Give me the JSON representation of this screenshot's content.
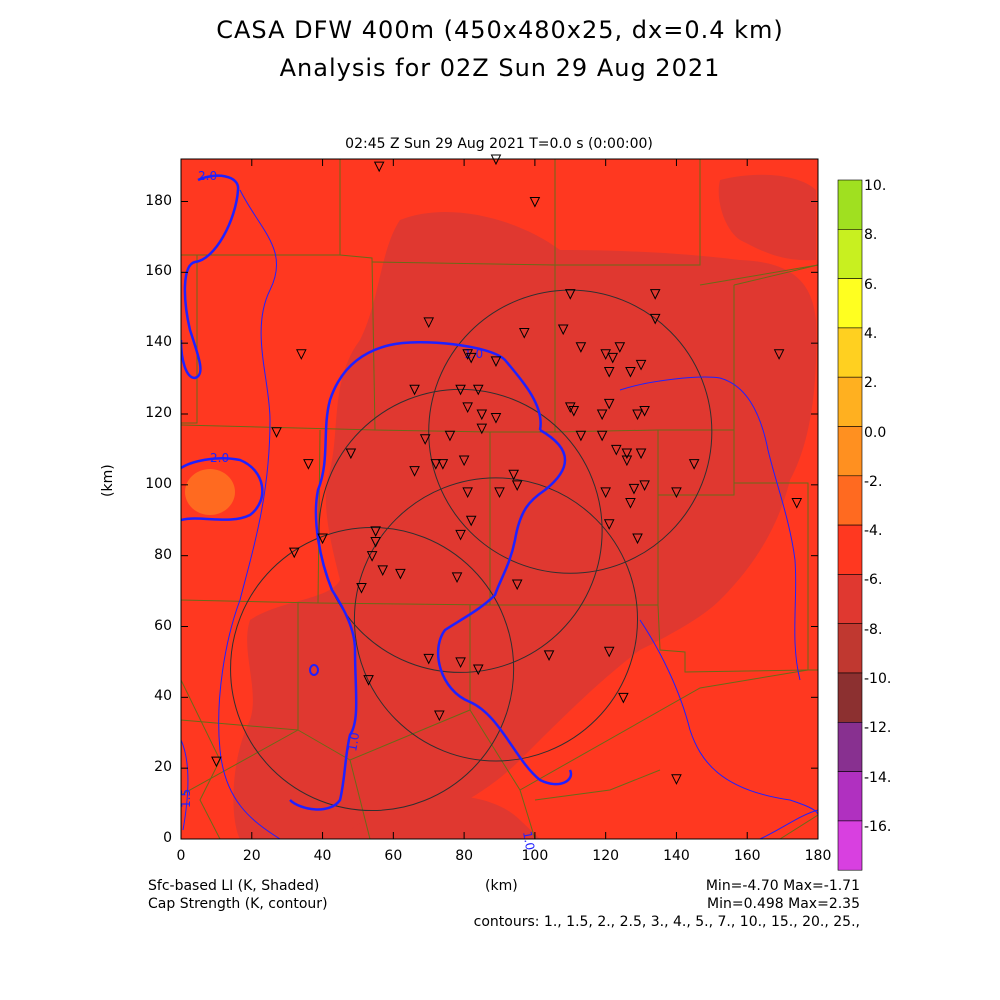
{
  "title_line1": "CASA DFW 400m (450x480x25, dx=0.4 km)",
  "title_line2": "Analysis for 02Z Sun 29 Aug 2021",
  "subtitle": "02:45 Z Sun 29 Aug 2021    T=0.0 s (0:00:00)",
  "x_axis_label": "(km)",
  "y_axis_label": "(km)",
  "x_ticks": [
    "0",
    "20",
    "40",
    "60",
    "80",
    "100",
    "120",
    "140",
    "160",
    "180"
  ],
  "y_ticks": [
    "0",
    "20",
    "40",
    "60",
    "80",
    "100",
    "120",
    "140",
    "160",
    "180"
  ],
  "footer": {
    "shaded_label": "Sfc-based LI (K, Shaded)",
    "contour_label": "Cap Strength (K, contour)",
    "shaded_range": "Min=-4.70 Max=-1.71",
    "contour_range": "Min=0.498 Max=2.35",
    "contours": "contours: 1., 1.5, 2., 2.5, 3., 4., 5., 7., 10., 15., 20., 25.,"
  },
  "contour_labels": [
    "2.0",
    "2.0",
    "1.0",
    "1.0",
    "1.0",
    "1.5"
  ],
  "colorbar": {
    "labels": [
      "10.",
      "8.",
      "6.",
      "4.",
      "2.",
      "0.0",
      "-2.",
      "-4.",
      "-6.",
      "-8.",
      "-10.",
      "-12.",
      "-14.",
      "-16."
    ],
    "colors": [
      "#a0e020",
      "#c8f020",
      "#ffff20",
      "#ffd020",
      "#ffb020",
      "#ff9020",
      "#ff6a20",
      "#ff3820",
      "#e03830",
      "#c03830",
      "#8c3030",
      "#883090",
      "#b030c0",
      "#d840e0"
    ]
  },
  "chart_data": {
    "type": "map",
    "xlim": [
      0,
      180
    ],
    "ylim": [
      0,
      192
    ],
    "stations": [
      [
        56,
        190
      ],
      [
        89,
        192
      ],
      [
        100,
        180
      ],
      [
        110,
        154
      ],
      [
        134,
        154
      ],
      [
        134,
        147
      ],
      [
        70,
        146
      ],
      [
        34,
        137
      ],
      [
        81,
        137
      ],
      [
        82,
        136
      ],
      [
        89,
        135
      ],
      [
        97,
        143
      ],
      [
        108,
        144
      ],
      [
        113,
        139
      ],
      [
        120,
        137
      ],
      [
        122,
        136
      ],
      [
        121,
        132
      ],
      [
        124,
        139
      ],
      [
        127,
        132
      ],
      [
        130,
        134
      ],
      [
        66,
        127
      ],
      [
        79,
        127
      ],
      [
        84,
        127
      ],
      [
        81,
        122
      ],
      [
        85,
        120
      ],
      [
        89,
        119
      ],
      [
        110,
        122
      ],
      [
        111,
        121
      ],
      [
        119,
        120
      ],
      [
        121,
        123
      ],
      [
        131,
        121
      ],
      [
        129,
        120
      ],
      [
        69,
        113
      ],
      [
        76,
        114
      ],
      [
        85,
        116
      ],
      [
        113,
        114
      ],
      [
        119,
        114
      ],
      [
        123,
        110
      ],
      [
        126,
        109
      ],
      [
        126,
        107
      ],
      [
        130,
        109
      ],
      [
        145,
        106
      ],
      [
        27,
        115
      ],
      [
        36,
        106
      ],
      [
        48,
        109
      ],
      [
        66,
        104
      ],
      [
        72,
        106
      ],
      [
        74,
        106
      ],
      [
        80,
        107
      ],
      [
        81,
        98
      ],
      [
        90,
        98
      ],
      [
        95,
        100
      ],
      [
        94,
        103
      ],
      [
        120,
        98
      ],
      [
        128,
        99
      ],
      [
        131,
        100
      ],
      [
        127,
        95
      ],
      [
        140,
        98
      ],
      [
        174,
        95
      ],
      [
        169,
        137
      ],
      [
        121,
        89
      ],
      [
        129,
        85
      ],
      [
        79,
        86
      ],
      [
        82,
        90
      ],
      [
        55,
        87
      ],
      [
        55,
        84
      ],
      [
        40,
        85
      ],
      [
        32,
        81
      ],
      [
        54,
        80
      ],
      [
        57,
        76
      ],
      [
        62,
        75
      ],
      [
        78,
        74
      ],
      [
        95,
        72
      ],
      [
        51,
        71
      ],
      [
        70,
        51
      ],
      [
        79,
        50
      ],
      [
        84,
        48
      ],
      [
        104,
        52
      ],
      [
        121,
        53
      ],
      [
        125,
        40
      ],
      [
        53,
        45
      ],
      [
        73,
        35
      ],
      [
        10,
        22
      ],
      [
        140,
        17
      ]
    ],
    "radar_circles": [
      {
        "cx": 110,
        "cy": 115,
        "r": 40
      },
      {
        "cx": 79,
        "cy": 87,
        "r": 40
      },
      {
        "cx": 89,
        "cy": 62,
        "r": 40
      },
      {
        "cx": 54,
        "cy": 48,
        "r": 40
      }
    ]
  }
}
